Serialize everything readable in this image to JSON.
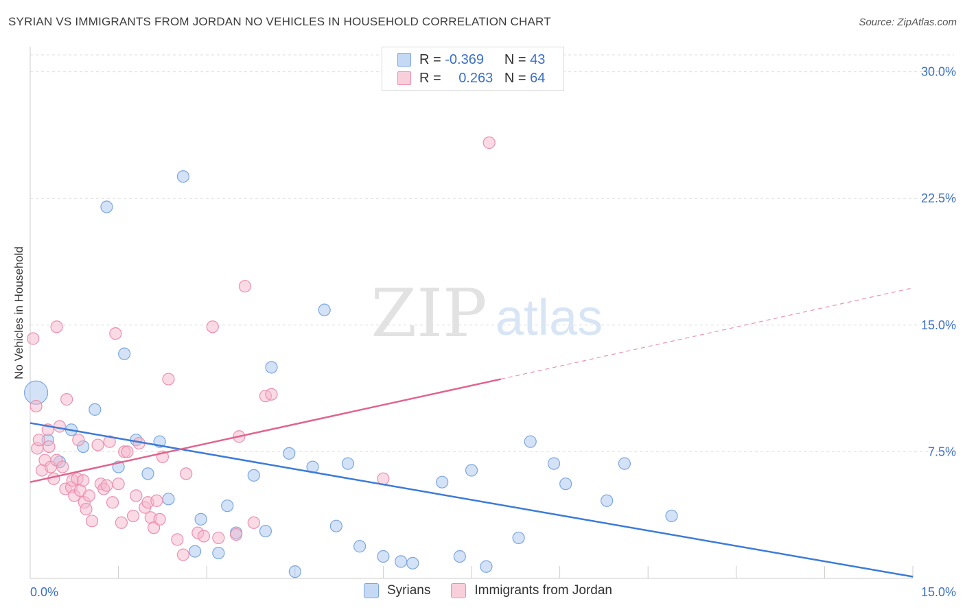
{
  "title": "SYRIAN VS IMMIGRANTS FROM JORDAN NO VEHICLES IN HOUSEHOLD CORRELATION CHART",
  "source": "Source: ZipAtlas.com",
  "watermark": {
    "zip": "ZIP",
    "atlas": "atlas"
  },
  "legend": {
    "rows": [
      {
        "r_label": "R =",
        "r_value": "-0.369",
        "n_label": "N =",
        "n_value": "43",
        "color": "#a9c6ef"
      },
      {
        "r_label": "R =",
        "r_value": "0.263",
        "n_label": "N =",
        "n_value": "64",
        "color": "#f6b8cc"
      }
    ]
  },
  "bottom_legend": [
    {
      "label": "Syrians",
      "color": "#a9c6ef"
    },
    {
      "label": "Immigrants from Jordan",
      "color": "#f6b8cc"
    }
  ],
  "chart_data": {
    "type": "scatter",
    "title": "SYRIAN VS IMMIGRANTS FROM JORDAN NO VEHICLES IN HOUSEHOLD CORRELATION CHART",
    "ylabel": "No Vehicles in Household",
    "xlim": [
      0,
      15
    ],
    "ylim": [
      0,
      31
    ],
    "x_tick_labels": [
      {
        "value": 0,
        "label": "0.0%"
      },
      {
        "value": 15,
        "label": "15.0%"
      }
    ],
    "y_tick_labels": [
      {
        "value": 7.5,
        "label": "7.5%"
      },
      {
        "value": 15,
        "label": "15.0%"
      },
      {
        "value": 22.5,
        "label": "22.5%"
      },
      {
        "value": 30,
        "label": "30.0%"
      }
    ],
    "grid": true,
    "series": [
      {
        "name": "Syrians",
        "color": "#a9c6ef",
        "stroke": "#7aa6df",
        "trend": {
          "x": [
            0,
            15
          ],
          "y": [
            9.2,
            0.1
          ],
          "color": "#3b7bd6",
          "dashed_to": null
        },
        "points": [
          {
            "x": 0.1,
            "y": 11.0,
            "big": true
          },
          {
            "x": 0.3,
            "y": 8.2
          },
          {
            "x": 0.5,
            "y": 6.9
          },
          {
            "x": 0.7,
            "y": 8.8
          },
          {
            "x": 0.9,
            "y": 7.8
          },
          {
            "x": 1.1,
            "y": 10.0
          },
          {
            "x": 1.3,
            "y": 22.0
          },
          {
            "x": 1.5,
            "y": 6.6
          },
          {
            "x": 1.6,
            "y": 13.3
          },
          {
            "x": 1.8,
            "y": 8.2
          },
          {
            "x": 2.0,
            "y": 6.2
          },
          {
            "x": 2.2,
            "y": 8.1
          },
          {
            "x": 2.35,
            "y": 4.7
          },
          {
            "x": 2.6,
            "y": 23.8
          },
          {
            "x": 2.8,
            "y": 1.6
          },
          {
            "x": 2.9,
            "y": 3.5
          },
          {
            "x": 3.2,
            "y": 1.5
          },
          {
            "x": 3.35,
            "y": 4.3
          },
          {
            "x": 3.5,
            "y": 2.7
          },
          {
            "x": 3.8,
            "y": 6.1
          },
          {
            "x": 4.0,
            "y": 2.8
          },
          {
            "x": 4.1,
            "y": 12.5
          },
          {
            "x": 4.4,
            "y": 7.4
          },
          {
            "x": 4.5,
            "y": 0.4
          },
          {
            "x": 4.8,
            "y": 6.6
          },
          {
            "x": 5.0,
            "y": 15.9
          },
          {
            "x": 5.2,
            "y": 3.1
          },
          {
            "x": 5.4,
            "y": 6.8
          },
          {
            "x": 5.6,
            "y": 1.9
          },
          {
            "x": 6.0,
            "y": 1.3
          },
          {
            "x": 6.3,
            "y": 1.0
          },
          {
            "x": 6.5,
            "y": 0.9
          },
          {
            "x": 7.0,
            "y": 5.7
          },
          {
            "x": 7.3,
            "y": 1.3
          },
          {
            "x": 7.5,
            "y": 6.4
          },
          {
            "x": 7.75,
            "y": 0.7
          },
          {
            "x": 8.3,
            "y": 2.4
          },
          {
            "x": 8.5,
            "y": 8.1
          },
          {
            "x": 8.9,
            "y": 6.8
          },
          {
            "x": 9.1,
            "y": 5.6
          },
          {
            "x": 9.8,
            "y": 4.6
          },
          {
            "x": 10.1,
            "y": 6.8
          },
          {
            "x": 10.9,
            "y": 3.7
          }
        ]
      },
      {
        "name": "Immigrants from Jordan",
        "color": "#f6b8cc",
        "stroke": "#ec8fac",
        "trend": {
          "x": [
            0,
            8.0
          ],
          "y": [
            5.7,
            11.8
          ],
          "color": "#e0648e",
          "dashed_to": {
            "x": 15,
            "y": 17.2
          }
        },
        "points": [
          {
            "x": 0.05,
            "y": 14.2
          },
          {
            "x": 0.1,
            "y": 10.2
          },
          {
            "x": 0.12,
            "y": 7.7
          },
          {
            "x": 0.15,
            "y": 8.2
          },
          {
            "x": 0.2,
            "y": 6.4
          },
          {
            "x": 0.25,
            "y": 7.0
          },
          {
            "x": 0.3,
            "y": 8.8
          },
          {
            "x": 0.32,
            "y": 7.8
          },
          {
            "x": 0.35,
            "y": 6.6
          },
          {
            "x": 0.4,
            "y": 5.9
          },
          {
            "x": 0.45,
            "y": 7.0
          },
          {
            "x": 0.45,
            "y": 14.9
          },
          {
            "x": 0.5,
            "y": 9.0
          },
          {
            "x": 0.55,
            "y": 6.6
          },
          {
            "x": 0.6,
            "y": 5.3
          },
          {
            "x": 0.62,
            "y": 10.6
          },
          {
            "x": 0.7,
            "y": 5.4
          },
          {
            "x": 0.72,
            "y": 5.8
          },
          {
            "x": 0.75,
            "y": 4.9
          },
          {
            "x": 0.8,
            "y": 5.9
          },
          {
            "x": 0.82,
            "y": 8.2
          },
          {
            "x": 0.85,
            "y": 5.2
          },
          {
            "x": 0.9,
            "y": 5.8
          },
          {
            "x": 0.92,
            "y": 4.5
          },
          {
            "x": 0.95,
            "y": 4.1
          },
          {
            "x": 1.0,
            "y": 4.9
          },
          {
            "x": 1.05,
            "y": 3.4
          },
          {
            "x": 1.15,
            "y": 7.9
          },
          {
            "x": 1.2,
            "y": 5.6
          },
          {
            "x": 1.25,
            "y": 5.3
          },
          {
            "x": 1.3,
            "y": 5.5
          },
          {
            "x": 1.35,
            "y": 8.1
          },
          {
            "x": 1.4,
            "y": 4.5
          },
          {
            "x": 1.45,
            "y": 14.5
          },
          {
            "x": 1.5,
            "y": 5.6
          },
          {
            "x": 1.55,
            "y": 3.3
          },
          {
            "x": 1.6,
            "y": 7.5
          },
          {
            "x": 1.65,
            "y": 7.5
          },
          {
            "x": 1.75,
            "y": 3.7
          },
          {
            "x": 1.8,
            "y": 4.9
          },
          {
            "x": 1.85,
            "y": 8.0
          },
          {
            "x": 1.95,
            "y": 4.2
          },
          {
            "x": 2.0,
            "y": 4.5
          },
          {
            "x": 2.05,
            "y": 3.6
          },
          {
            "x": 2.1,
            "y": 3.0
          },
          {
            "x": 2.15,
            "y": 4.6
          },
          {
            "x": 2.2,
            "y": 3.5
          },
          {
            "x": 2.25,
            "y": 7.2
          },
          {
            "x": 2.35,
            "y": 11.8
          },
          {
            "x": 2.5,
            "y": 2.3
          },
          {
            "x": 2.6,
            "y": 1.4
          },
          {
            "x": 2.65,
            "y": 6.2
          },
          {
            "x": 2.85,
            "y": 2.7
          },
          {
            "x": 2.95,
            "y": 2.5
          },
          {
            "x": 3.1,
            "y": 14.9
          },
          {
            "x": 3.2,
            "y": 2.4
          },
          {
            "x": 3.5,
            "y": 2.6
          },
          {
            "x": 3.55,
            "y": 8.4
          },
          {
            "x": 3.65,
            "y": 17.3
          },
          {
            "x": 3.8,
            "y": 3.3
          },
          {
            "x": 4.0,
            "y": 10.8
          },
          {
            "x": 4.1,
            "y": 10.9
          },
          {
            "x": 6.0,
            "y": 5.9
          },
          {
            "x": 7.8,
            "y": 25.8
          }
        ]
      }
    ]
  }
}
